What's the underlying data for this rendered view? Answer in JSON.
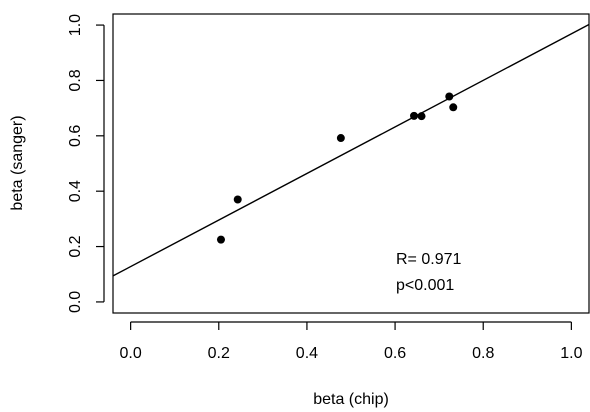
{
  "chart_data": {
    "type": "scatter",
    "xlabel": "beta (chip)",
    "ylabel": "beta (sanger)",
    "xlim": [
      -0.04,
      1.04
    ],
    "ylim": [
      -0.04,
      1.04
    ],
    "x_ticks": [
      0.0,
      0.2,
      0.4,
      0.6,
      0.8,
      1.0
    ],
    "y_ticks": [
      0.0,
      0.2,
      0.4,
      0.6,
      0.8,
      1.0
    ],
    "x_tick_labels": [
      "0.0",
      "0.2",
      "0.4",
      "0.6",
      "0.8",
      "1.0"
    ],
    "y_tick_labels": [
      "0.0",
      "0.2",
      "0.4",
      "0.6",
      "0.8",
      "1.0"
    ],
    "grid": false,
    "points": [
      {
        "x": 0.205,
        "y": 0.225
      },
      {
        "x": 0.243,
        "y": 0.37
      },
      {
        "x": 0.477,
        "y": 0.592
      },
      {
        "x": 0.643,
        "y": 0.672
      },
      {
        "x": 0.66,
        "y": 0.671
      },
      {
        "x": 0.723,
        "y": 0.742
      },
      {
        "x": 0.732,
        "y": 0.703
      }
    ],
    "fit_line": {
      "x": [
        -0.04,
        1.04
      ],
      "y": [
        0.094,
        1.002
      ]
    },
    "annotations": [
      "R= 0.971",
      "p<0.001"
    ]
  }
}
